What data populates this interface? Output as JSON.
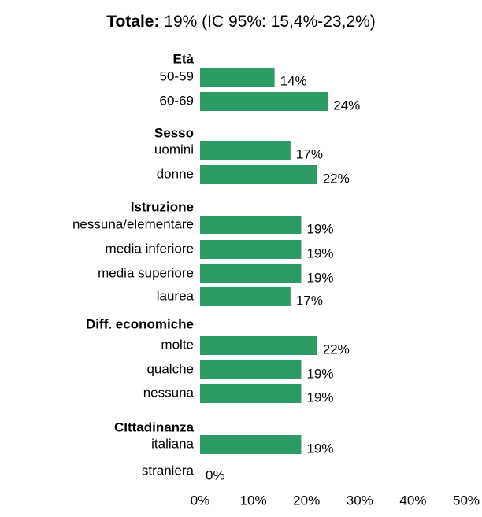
{
  "chart_data": {
    "type": "bar",
    "orientation": "horizontal",
    "title_bold": "Totale:",
    "title_rest": " 19% (IC 95%: 15,4%-23,2%)",
    "bar_color": "#2e9b66",
    "xlim": [
      0,
      50
    ],
    "xticks": [
      "0%",
      "10%",
      "20%",
      "30%",
      "40%",
      "50%"
    ],
    "groups": [
      {
        "name": "Età",
        "items": [
          {
            "label": "50-59",
            "value": 14,
            "value_label": "14%"
          },
          {
            "label": "60-69",
            "value": 24,
            "value_label": "24%"
          }
        ]
      },
      {
        "name": "Sesso",
        "items": [
          {
            "label": "uomini",
            "value": 17,
            "value_label": "17%"
          },
          {
            "label": "donne",
            "value": 22,
            "value_label": "22%"
          }
        ]
      },
      {
        "name": "Istruzione",
        "items": [
          {
            "label": "nessuna/elementare",
            "value": 19,
            "value_label": "19%"
          },
          {
            "label": "media inferiore",
            "value": 19,
            "value_label": "19%"
          },
          {
            "label": "media superiore",
            "value": 19,
            "value_label": "19%"
          },
          {
            "label": "laurea",
            "value": 17,
            "value_label": "17%"
          }
        ]
      },
      {
        "name": "Diff. economiche",
        "items": [
          {
            "label": "molte",
            "value": 22,
            "value_label": "22%"
          },
          {
            "label": "qualche",
            "value": 19,
            "value_label": "19%"
          },
          {
            "label": "nessuna",
            "value": 19,
            "value_label": "19%"
          }
        ]
      },
      {
        "name": "CIttadinanza",
        "items": [
          {
            "label": "italiana",
            "value": 19,
            "value_label": "19%"
          },
          {
            "label": "straniera",
            "value": 0,
            "value_label": "0%"
          }
        ]
      }
    ]
  }
}
